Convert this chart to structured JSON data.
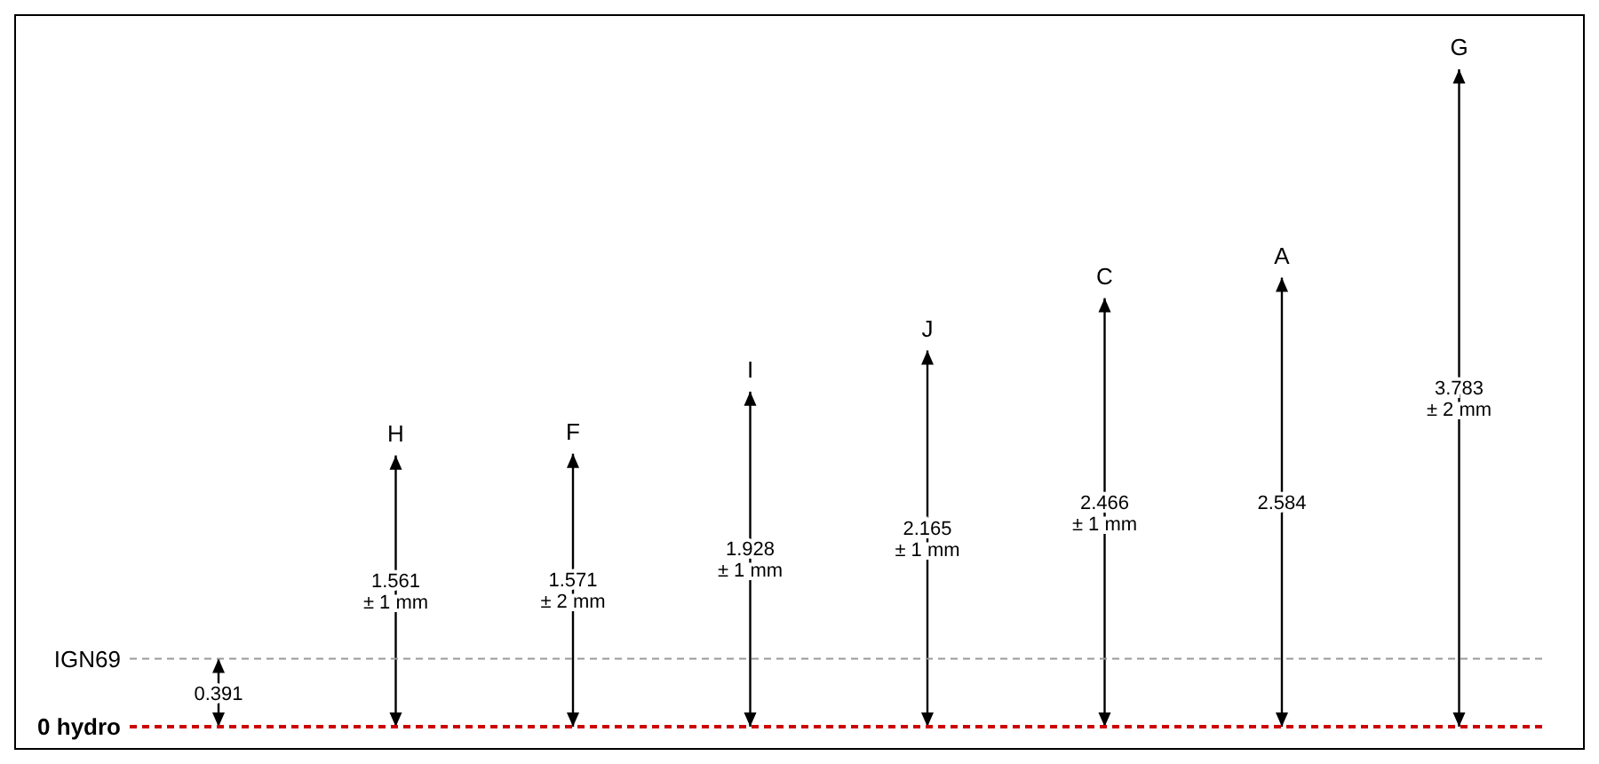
{
  "chart_data": {
    "type": "bar",
    "categories": [
      null,
      "H",
      "F",
      "I",
      "J",
      "C",
      "A",
      "G"
    ],
    "values": [
      0.391,
      1.561,
      1.571,
      1.928,
      2.165,
      2.466,
      2.584,
      3.783
    ],
    "value_labels": [
      "0.391",
      "1.561\n± 1 mm",
      "1.571\n± 2 mm",
      "1.928\n± 1 mm",
      "2.165\n± 1 mm",
      "2.466\n± 1 mm",
      "2.584",
      "3.783\n± 2 mm"
    ],
    "color": "#000000",
    "ref_lines": [
      {
        "axis": "y",
        "value": 0,
        "label": "0 hydro",
        "color": "#cc0000",
        "line_style": "dashed"
      },
      {
        "axis": "y",
        "value": 0.391,
        "label": "IGN69",
        "color": "#999999",
        "line_style": "dashed"
      }
    ],
    "grid": false
  }
}
